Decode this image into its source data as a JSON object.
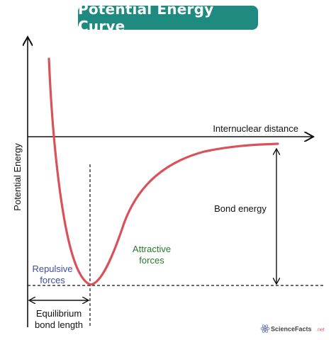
{
  "title": "Potential Energy Curve",
  "labels": {
    "y_axis": "Potential Energy",
    "x_axis": "Internuclear distance",
    "bond_energy": "Bond energy",
    "attractive_line1": "Attractive",
    "attractive_line2": "forces",
    "repulsive_line1": "Repulsive",
    "repulsive_line2": "forces",
    "equilibrium_line1": "Equilibrium",
    "equilibrium_line2": "bond length"
  },
  "watermark": {
    "text_main": "ScienceFacts",
    "text_suffix": ".net"
  },
  "colors": {
    "curve": "#d9525b",
    "title_bg": "#1f8a80",
    "attractive": "#2a7a2a",
    "repulsive": "#3f4ca8",
    "axis": "#111111"
  }
}
